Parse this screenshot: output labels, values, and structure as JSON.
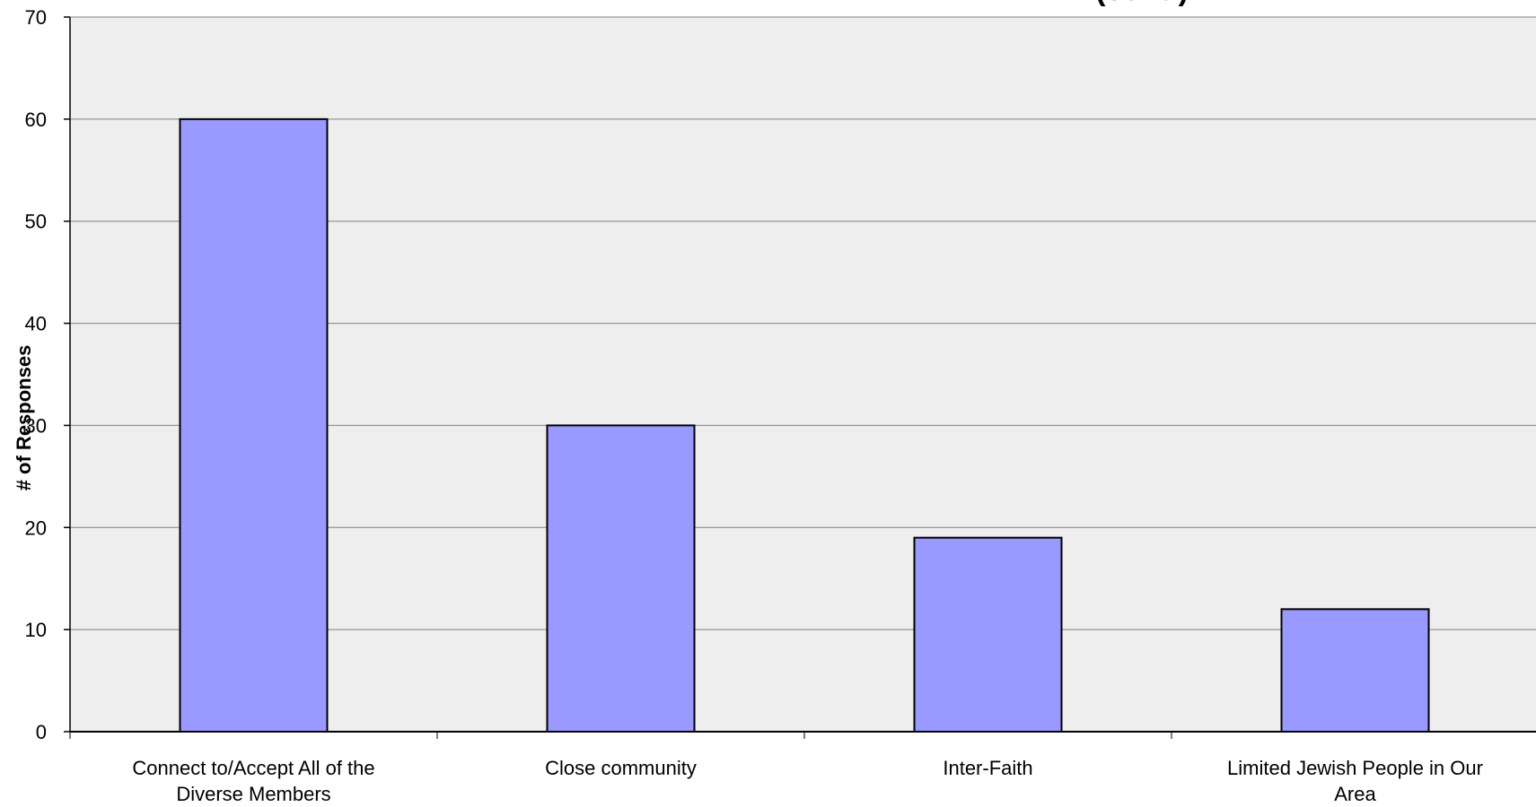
{
  "chart_data": {
    "type": "bar",
    "title": "(cont.)",
    "xlabel": "",
    "ylabel": "# of Responses",
    "categories": [
      [
        "Connect to/Accept All of the",
        "Diverse Members"
      ],
      [
        "Close community"
      ],
      [
        "Inter-Faith"
      ],
      [
        "Limited Jewish People in Our",
        "Area"
      ]
    ],
    "values": [
      60,
      30,
      19,
      12
    ],
    "ylim": [
      0,
      70
    ],
    "yticks": [
      0,
      10,
      20,
      30,
      40,
      50,
      60,
      70
    ],
    "grid": true,
    "legend": "none",
    "colors": {
      "plot_background": "#eeeeee",
      "bar_fill": "#9999ff",
      "bar_stroke": "#000000",
      "gridline": "#808080",
      "axis": "#000000"
    }
  }
}
